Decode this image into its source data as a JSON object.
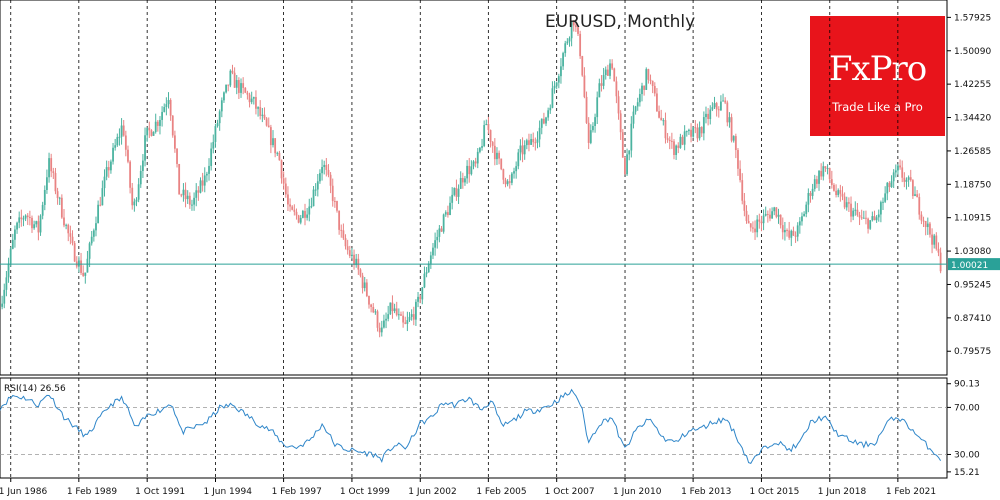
{
  "brand": {
    "name": "FxPro",
    "tagline": "Trade Like a Pro",
    "color": "#e8141b"
  },
  "colors": {
    "up": "#4bb3a0",
    "down": "#e98383",
    "rsi_line": "#2f86c9",
    "price_line": "#2aa198",
    "grid": "#000000"
  },
  "chart_data": [
    {
      "type": "candlestick",
      "title": "EURUSD, Monthly",
      "ylim": [
        0.74,
        1.62
      ],
      "y_ticks": [
        "1.57925",
        "1.50090",
        "1.42255",
        "1.34420",
        "1.26585",
        "1.18750",
        "1.10915",
        "1.03080",
        "0.95245",
        "0.87410",
        "0.79575"
      ],
      "y_tick_values": [
        1.57925,
        1.5009,
        1.42255,
        1.3442,
        1.26585,
        1.1875,
        1.10915,
        1.0308,
        0.95245,
        0.8741,
        0.79575
      ],
      "current_price": "1.00021",
      "current_price_value": 1.00021,
      "x_ticks": [
        "1 Jun 1986",
        "1 Feb 1989",
        "1 Oct 1991",
        "1 Jun 1994",
        "1 Feb 1997",
        "1 Oct 1999",
        "1 Jun 2002",
        "1 Feb 2005",
        "1 Oct 2007",
        "1 Jun 2010",
        "1 Feb 2013",
        "1 Oct 2015",
        "1 Jun 2018",
        "1 Feb 2021"
      ],
      "x_tick_years": [
        1986.42,
        1989.08,
        1991.75,
        1994.42,
        1997.08,
        1999.75,
        2002.42,
        2005.08,
        2007.75,
        2010.42,
        2013.08,
        2015.75,
        2018.42,
        2021.08
      ],
      "x_range": [
        1986.0,
        2023.0
      ],
      "grid": "vertical dashed at each x tick",
      "close_path": [
        [
          1986.0,
          0.9
        ],
        [
          1986.6,
          1.08
        ],
        [
          1987.0,
          1.12
        ],
        [
          1987.5,
          1.08
        ],
        [
          1987.9,
          1.24
        ],
        [
          1988.3,
          1.15
        ],
        [
          1988.8,
          1.04
        ],
        [
          1989.3,
          0.97
        ],
        [
          1989.7,
          1.1
        ],
        [
          1990.2,
          1.22
        ],
        [
          1990.8,
          1.33
        ],
        [
          1991.2,
          1.12
        ],
        [
          1991.7,
          1.3
        ],
        [
          1992.2,
          1.34
        ],
        [
          1992.6,
          1.4
        ],
        [
          1993.0,
          1.17
        ],
        [
          1993.5,
          1.14
        ],
        [
          1994.0,
          1.2
        ],
        [
          1994.6,
          1.36
        ],
        [
          1995.0,
          1.44
        ],
        [
          1995.4,
          1.41
        ],
        [
          1995.9,
          1.38
        ],
        [
          1996.4,
          1.32
        ],
        [
          1996.9,
          1.25
        ],
        [
          1997.3,
          1.12
        ],
        [
          1997.7,
          1.11
        ],
        [
          1998.1,
          1.14
        ],
        [
          1998.6,
          1.24
        ],
        [
          1999.0,
          1.16
        ],
        [
          1999.4,
          1.05
        ],
        [
          1999.9,
          1.0
        ],
        [
          2000.4,
          0.92
        ],
        [
          2000.9,
          0.84
        ],
        [
          2001.3,
          0.9
        ],
        [
          2001.8,
          0.85
        ],
        [
          2002.3,
          0.9
        ],
        [
          2002.8,
          1.02
        ],
        [
          2003.3,
          1.1
        ],
        [
          2003.8,
          1.17
        ],
        [
          2004.2,
          1.22
        ],
        [
          2004.6,
          1.23
        ],
        [
          2005.0,
          1.33
        ],
        [
          2005.4,
          1.25
        ],
        [
          2005.9,
          1.18
        ],
        [
          2006.3,
          1.26
        ],
        [
          2006.8,
          1.29
        ],
        [
          2007.3,
          1.34
        ],
        [
          2007.8,
          1.45
        ],
        [
          2008.4,
          1.58
        ],
        [
          2008.7,
          1.49
        ],
        [
          2009.0,
          1.27
        ],
        [
          2009.4,
          1.41
        ],
        [
          2009.9,
          1.48
        ],
        [
          2010.4,
          1.22
        ],
        [
          2010.8,
          1.36
        ],
        [
          2011.3,
          1.45
        ],
        [
          2011.8,
          1.34
        ],
        [
          2012.3,
          1.27
        ],
        [
          2012.8,
          1.3
        ],
        [
          2013.3,
          1.31
        ],
        [
          2013.8,
          1.36
        ],
        [
          2014.3,
          1.38
        ],
        [
          2014.8,
          1.25
        ],
        [
          2015.2,
          1.08
        ],
        [
          2015.7,
          1.1
        ],
        [
          2016.3,
          1.13
        ],
        [
          2016.8,
          1.06
        ],
        [
          2017.2,
          1.08
        ],
        [
          2017.7,
          1.18
        ],
        [
          2018.2,
          1.23
        ],
        [
          2018.7,
          1.16
        ],
        [
          2019.2,
          1.13
        ],
        [
          2019.7,
          1.1
        ],
        [
          2020.2,
          1.1
        ],
        [
          2020.7,
          1.18
        ],
        [
          2021.1,
          1.22
        ],
        [
          2021.6,
          1.18
        ],
        [
          2022.0,
          1.12
        ],
        [
          2022.5,
          1.05
        ],
        [
          2022.75,
          1.0
        ]
      ]
    },
    {
      "type": "line",
      "label": "RSI(14) 26.56",
      "ylim": [
        10,
        95
      ],
      "y_ticks": [
        "90.13",
        "70.00",
        "30.00",
        "15.21"
      ],
      "y_tick_values": [
        90.13,
        70.0,
        30.0,
        15.21
      ],
      "dashed_levels": [
        70.0,
        30.0
      ],
      "path": [
        [
          1986.0,
          70
        ],
        [
          1986.5,
          80
        ],
        [
          1987.0,
          78
        ],
        [
          1987.5,
          72
        ],
        [
          1987.9,
          82
        ],
        [
          1988.5,
          62
        ],
        [
          1989.0,
          52
        ],
        [
          1989.4,
          45
        ],
        [
          1989.8,
          58
        ],
        [
          1990.3,
          72
        ],
        [
          1990.8,
          78
        ],
        [
          1991.3,
          52
        ],
        [
          1991.8,
          64
        ],
        [
          1992.3,
          68
        ],
        [
          1992.7,
          74
        ],
        [
          1993.1,
          49
        ],
        [
          1993.6,
          53
        ],
        [
          1994.1,
          58
        ],
        [
          1994.6,
          70
        ],
        [
          1995.1,
          72
        ],
        [
          1995.6,
          64
        ],
        [
          1996.1,
          56
        ],
        [
          1996.6,
          50
        ],
        [
          1997.1,
          38
        ],
        [
          1997.6,
          36
        ],
        [
          1998.1,
          42
        ],
        [
          1998.6,
          56
        ],
        [
          1999.1,
          38
        ],
        [
          1999.6,
          34
        ],
        [
          2000.1,
          32
        ],
        [
          2000.6,
          30
        ],
        [
          2000.9,
          26
        ],
        [
          2001.4,
          38
        ],
        [
          2001.9,
          36
        ],
        [
          2002.4,
          56
        ],
        [
          2002.9,
          62
        ],
        [
          2003.3,
          74
        ],
        [
          2003.8,
          72
        ],
        [
          2004.3,
          78
        ],
        [
          2004.8,
          68
        ],
        [
          2005.2,
          76
        ],
        [
          2005.6,
          54
        ],
        [
          2006.0,
          58
        ],
        [
          2006.5,
          66
        ],
        [
          2007.0,
          68
        ],
        [
          2007.5,
          72
        ],
        [
          2007.9,
          78
        ],
        [
          2008.4,
          84
        ],
        [
          2008.7,
          72
        ],
        [
          2009.0,
          40
        ],
        [
          2009.4,
          56
        ],
        [
          2009.9,
          62
        ],
        [
          2010.4,
          34
        ],
        [
          2010.9,
          52
        ],
        [
          2011.4,
          60
        ],
        [
          2011.9,
          44
        ],
        [
          2012.4,
          40
        ],
        [
          2012.9,
          50
        ],
        [
          2013.4,
          52
        ],
        [
          2013.9,
          58
        ],
        [
          2014.4,
          60
        ],
        [
          2014.9,
          40
        ],
        [
          2015.3,
          22
        ],
        [
          2015.8,
          34
        ],
        [
          2016.3,
          42
        ],
        [
          2016.8,
          34
        ],
        [
          2017.2,
          38
        ],
        [
          2017.7,
          58
        ],
        [
          2018.2,
          62
        ],
        [
          2018.7,
          48
        ],
        [
          2019.2,
          42
        ],
        [
          2019.7,
          38
        ],
        [
          2020.2,
          40
        ],
        [
          2020.7,
          58
        ],
        [
          2021.1,
          62
        ],
        [
          2021.6,
          52
        ],
        [
          2022.0,
          42
        ],
        [
          2022.4,
          34
        ],
        [
          2022.75,
          26.56
        ]
      ]
    }
  ]
}
